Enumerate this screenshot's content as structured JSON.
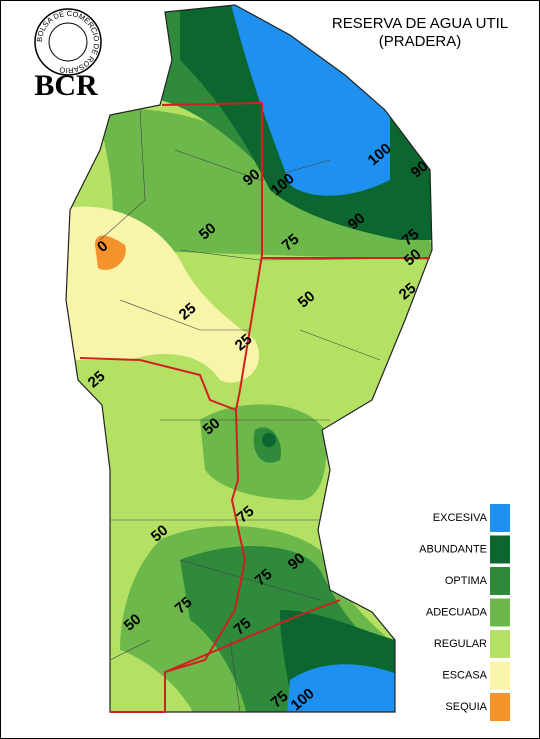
{
  "header": {
    "title": "RESERVA DE AGUA UTIL",
    "subtitle": "(PRADERA)",
    "logo_text": "BCR",
    "logo_ring": "BOLSA DE COMERCIO DE ROSARIO"
  },
  "legend": [
    {
      "label": "EXCESIVA",
      "color": "#1e90f0"
    },
    {
      "label": "ABUNDANTE",
      "color": "#0b6630"
    },
    {
      "label": "OPTIMA",
      "color": "#2f8a3c"
    },
    {
      "label": "ADECUADA",
      "color": "#6cb84a"
    },
    {
      "label": "REGULAR",
      "color": "#b4e064"
    },
    {
      "label": "ESCASA",
      "color": "#f8f4aa"
    },
    {
      "label": "SEQUIA",
      "color": "#f4922c"
    }
  ],
  "contour_labels": [
    90,
    100,
    100,
    90,
    50,
    90,
    75,
    75,
    50,
    0,
    25,
    50,
    25,
    25,
    25,
    50,
    75,
    50,
    90,
    75,
    75,
    50,
    75,
    75,
    100
  ]
}
